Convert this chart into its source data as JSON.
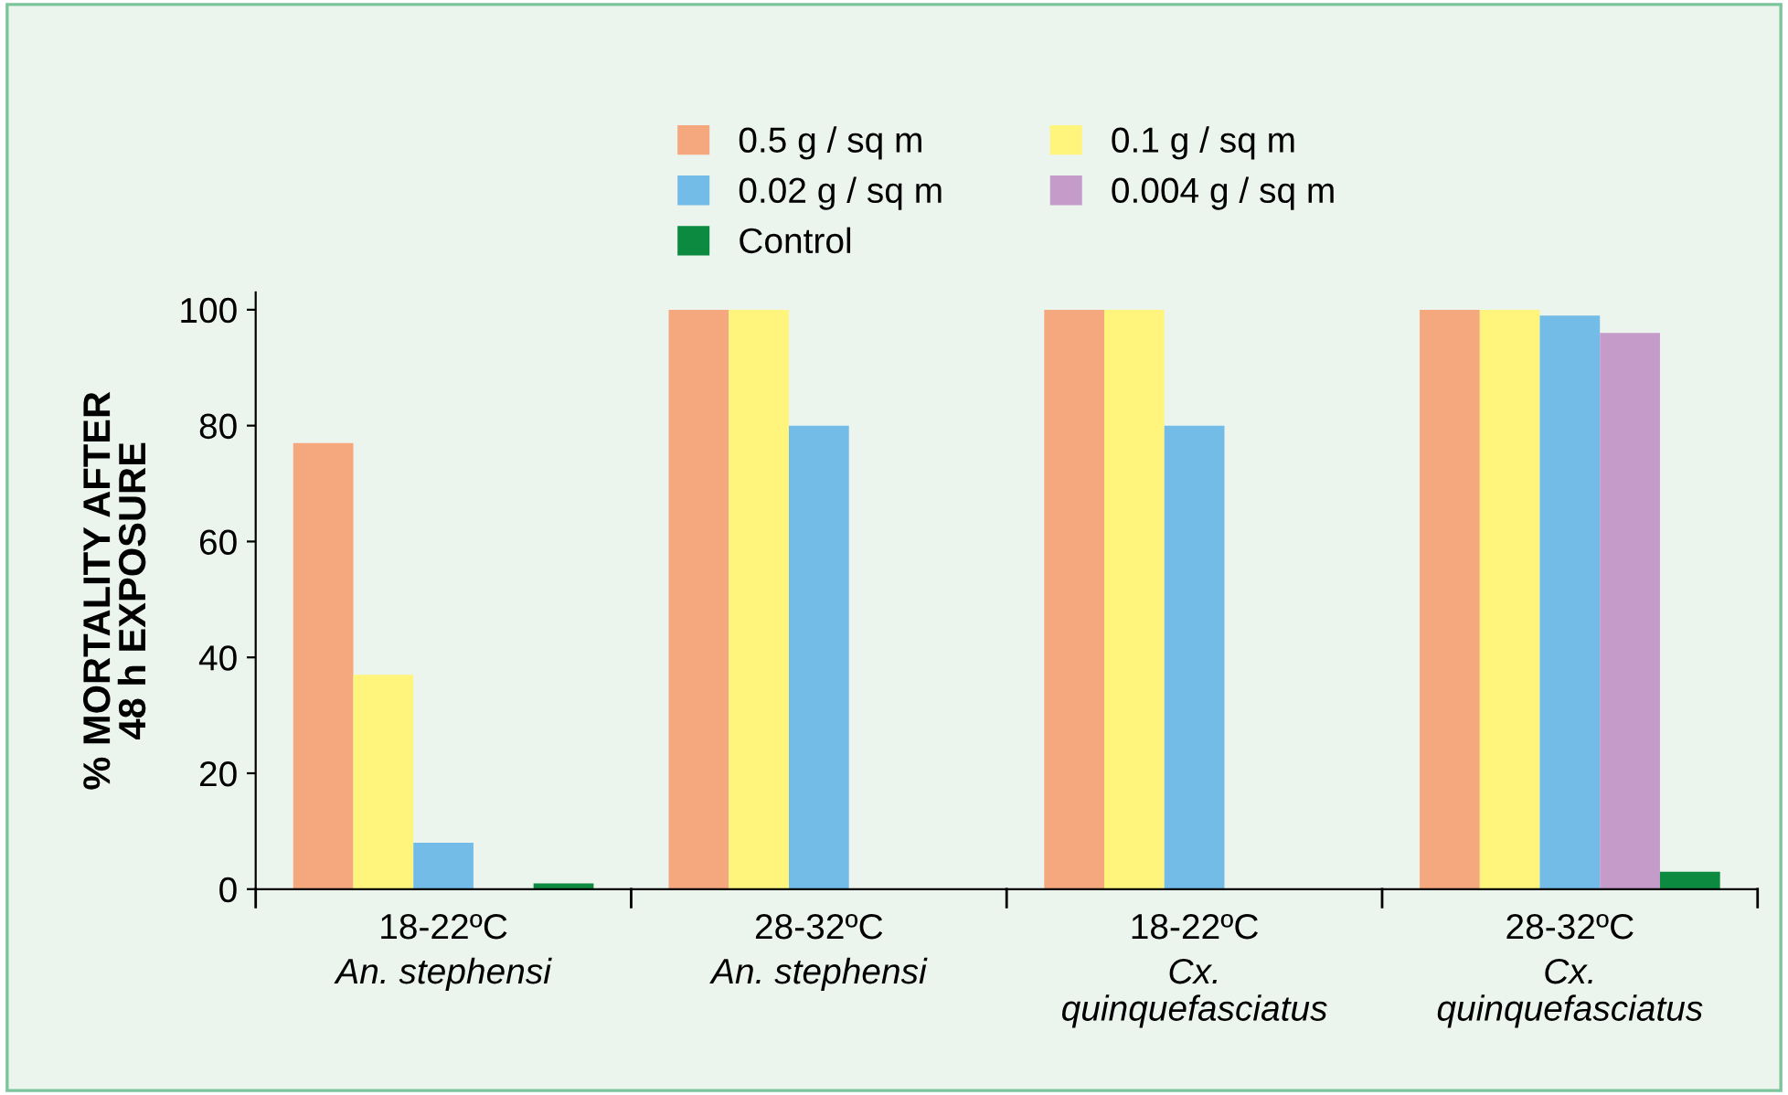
{
  "chart_data": {
    "type": "bar",
    "ylabel": "% MORTALITY AFTER\n48 h EXPOSURE",
    "categories": [
      "18-22ºC\nAn. stephensi",
      "28-32ºC\nAn. stephensi",
      "18-22ºC\nCx.\nquinquefasciatus",
      "28-32ºC\nCx.\nquinquefasciatus"
    ],
    "series": [
      {
        "name": "0.5 g / sq m",
        "color": "#f5a77e",
        "values": [
          77,
          100,
          100,
          100
        ]
      },
      {
        "name": "0.1 g / sq m",
        "color": "#fff47c",
        "values": [
          37,
          100,
          100,
          100
        ]
      },
      {
        "name": "0.02 g / sq m",
        "color": "#74bce8",
        "values": [
          8,
          80,
          80,
          99
        ]
      },
      {
        "name": "0.004 g / sq m",
        "color": "#c59cc9",
        "values": [
          null,
          null,
          null,
          96
        ]
      },
      {
        "name": "Control",
        "color": "#0b8a40",
        "values": [
          1,
          null,
          null,
          3
        ]
      }
    ],
    "ylim": [
      0,
      103
    ],
    "yticks": [
      0,
      20,
      40,
      60,
      80,
      100
    ],
    "grid": false,
    "legend": "top"
  }
}
